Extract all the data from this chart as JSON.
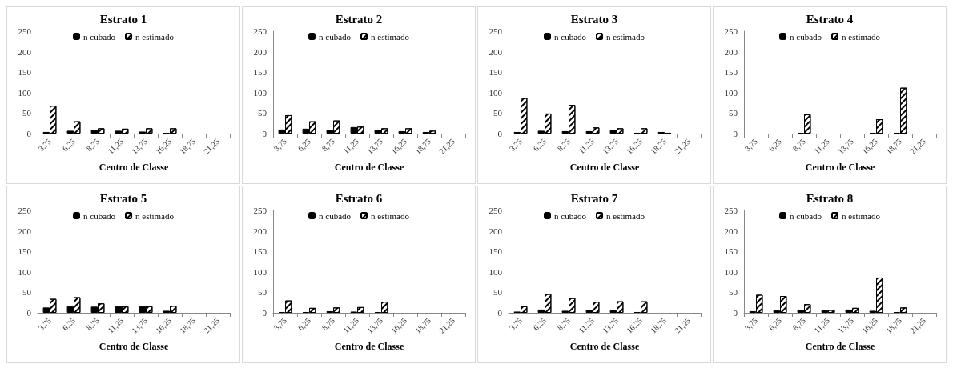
{
  "chart_data": [
    {
      "type": "bar",
      "title": "Estrato 1",
      "xlabel": "Centro de Classe",
      "categories": [
        "3,75",
        "6,25",
        "8,75",
        "11,25",
        "13,75",
        "16,25",
        "18,75",
        "21,25"
      ],
      "ylim": [
        0,
        250
      ],
      "yticks": [
        0,
        50,
        100,
        150,
        200,
        250
      ],
      "grid": false,
      "legend": "top",
      "series": [
        {
          "name": "n cubado",
          "color": "#000000",
          "values": [
            4,
            7,
            9,
            7,
            5,
            2,
            null,
            null
          ]
        },
        {
          "name": "n estimado",
          "color": "#ffffff",
          "values": [
            68,
            30,
            13,
            12,
            13,
            13,
            null,
            null
          ]
        }
      ]
    },
    {
      "type": "bar",
      "title": "Estrato 2",
      "xlabel": "Centro de Classe",
      "categories": [
        "3,75",
        "6,25",
        "8,75",
        "11,25",
        "13,75",
        "16,25",
        "18,75",
        "21,25"
      ],
      "ylim": [
        0,
        250
      ],
      "yticks": [
        0,
        50,
        100,
        150,
        200,
        250
      ],
      "grid": false,
      "legend": "top",
      "series": [
        {
          "name": "n cubado",
          "color": "#000000",
          "values": [
            10,
            12,
            9,
            16,
            9,
            6,
            4,
            null
          ]
        },
        {
          "name": "n estimado",
          "color": "#ffffff",
          "values": [
            45,
            30,
            32,
            17,
            13,
            13,
            7,
            null
          ]
        }
      ]
    },
    {
      "type": "bar",
      "title": "Estrato 3",
      "xlabel": "Centro de Classe",
      "categories": [
        "3,75",
        "6,25",
        "8,75",
        "11,25",
        "13,75",
        "16,25",
        "18,75",
        "21,25"
      ],
      "ylim": [
        0,
        250
      ],
      "yticks": [
        0,
        50,
        100,
        150,
        200,
        250
      ],
      "grid": false,
      "legend": "top",
      "series": [
        {
          "name": "n cubado",
          "color": "#000000",
          "values": [
            4,
            7,
            6,
            6,
            9,
            2,
            4,
            null
          ]
        },
        {
          "name": "n estimado",
          "color": "#ffffff",
          "values": [
            87,
            49,
            70,
            15,
            13,
            13,
            2,
            null
          ]
        }
      ]
    },
    {
      "type": "bar",
      "title": "Estrato 4",
      "xlabel": "Centro de Classe",
      "categories": [
        "3,75",
        "6,25",
        "8,75",
        "11,25",
        "13,75",
        "16,25",
        "18,75",
        "21,25"
      ],
      "ylim": [
        0,
        250
      ],
      "yticks": [
        0,
        50,
        100,
        150,
        200,
        250
      ],
      "grid": false,
      "legend": "top",
      "series": [
        {
          "name": "n cubado",
          "color": "#000000",
          "values": [
            null,
            null,
            2,
            null,
            null,
            2,
            2,
            null
          ]
        },
        {
          "name": "n estimado",
          "color": "#ffffff",
          "values": [
            null,
            null,
            47,
            null,
            null,
            35,
            112,
            null
          ]
        }
      ]
    },
    {
      "type": "bar",
      "title": "Estrato 5",
      "xlabel": "Centro de Classe",
      "categories": [
        "3,75",
        "6,25",
        "8,75",
        "11,25",
        "13,75",
        "16,25",
        "18,75",
        "21,25"
      ],
      "ylim": [
        0,
        250
      ],
      "yticks": [
        0,
        50,
        100,
        150,
        200,
        250
      ],
      "grid": false,
      "legend": "top",
      "series": [
        {
          "name": "n cubado",
          "color": "#000000",
          "values": [
            13,
            16,
            15,
            16,
            16,
            5,
            null,
            null
          ]
        },
        {
          "name": "n estimado",
          "color": "#ffffff",
          "values": [
            34,
            38,
            23,
            16,
            16,
            17,
            null,
            null
          ]
        }
      ]
    },
    {
      "type": "bar",
      "title": "Estrato 6",
      "xlabel": "Centro de Classe",
      "categories": [
        "3,75",
        "6,25",
        "8,75",
        "11,25",
        "13,75",
        "16,25",
        "18,75",
        "21,25"
      ],
      "ylim": [
        0,
        250
      ],
      "yticks": [
        0,
        50,
        100,
        150,
        200,
        250
      ],
      "grid": false,
      "legend": "top",
      "series": [
        {
          "name": "n cubado",
          "color": "#000000",
          "values": [
            2,
            2,
            4,
            3,
            2,
            null,
            null,
            null
          ]
        },
        {
          "name": "n estimado",
          "color": "#ffffff",
          "values": [
            30,
            12,
            13,
            14,
            27,
            null,
            null,
            null
          ]
        }
      ]
    },
    {
      "type": "bar",
      "title": "Estrato 7",
      "xlabel": "Centro de Classe",
      "categories": [
        "3,75",
        "6,25",
        "8,75",
        "11,25",
        "13,75",
        "16,25",
        "18,75",
        "21,25"
      ],
      "ylim": [
        0,
        250
      ],
      "yticks": [
        0,
        50,
        100,
        150,
        200,
        250
      ],
      "grid": false,
      "legend": "top",
      "series": [
        {
          "name": "n cubado",
          "color": "#000000",
          "values": [
            3,
            8,
            5,
            7,
            6,
            2,
            null,
            null
          ]
        },
        {
          "name": "n estimado",
          "color": "#ffffff",
          "values": [
            16,
            46,
            36,
            27,
            28,
            28,
            null,
            null
          ]
        }
      ]
    },
    {
      "type": "bar",
      "title": "Estrato 8",
      "xlabel": "Centro de Classe",
      "categories": [
        "3,75",
        "6,25",
        "8,75",
        "11,25",
        "13,75",
        "16,25",
        "18,75",
        "21,25"
      ],
      "ylim": [
        0,
        250
      ],
      "yticks": [
        0,
        50,
        100,
        150,
        200,
        250
      ],
      "grid": false,
      "legend": "top",
      "series": [
        {
          "name": "n cubado",
          "color": "#000000",
          "values": [
            4,
            6,
            7,
            6,
            8,
            5,
            2,
            null
          ]
        },
        {
          "name": "n estimado",
          "color": "#ffffff",
          "values": [
            44,
            41,
            21,
            7,
            12,
            86,
            13,
            null
          ]
        }
      ]
    }
  ]
}
